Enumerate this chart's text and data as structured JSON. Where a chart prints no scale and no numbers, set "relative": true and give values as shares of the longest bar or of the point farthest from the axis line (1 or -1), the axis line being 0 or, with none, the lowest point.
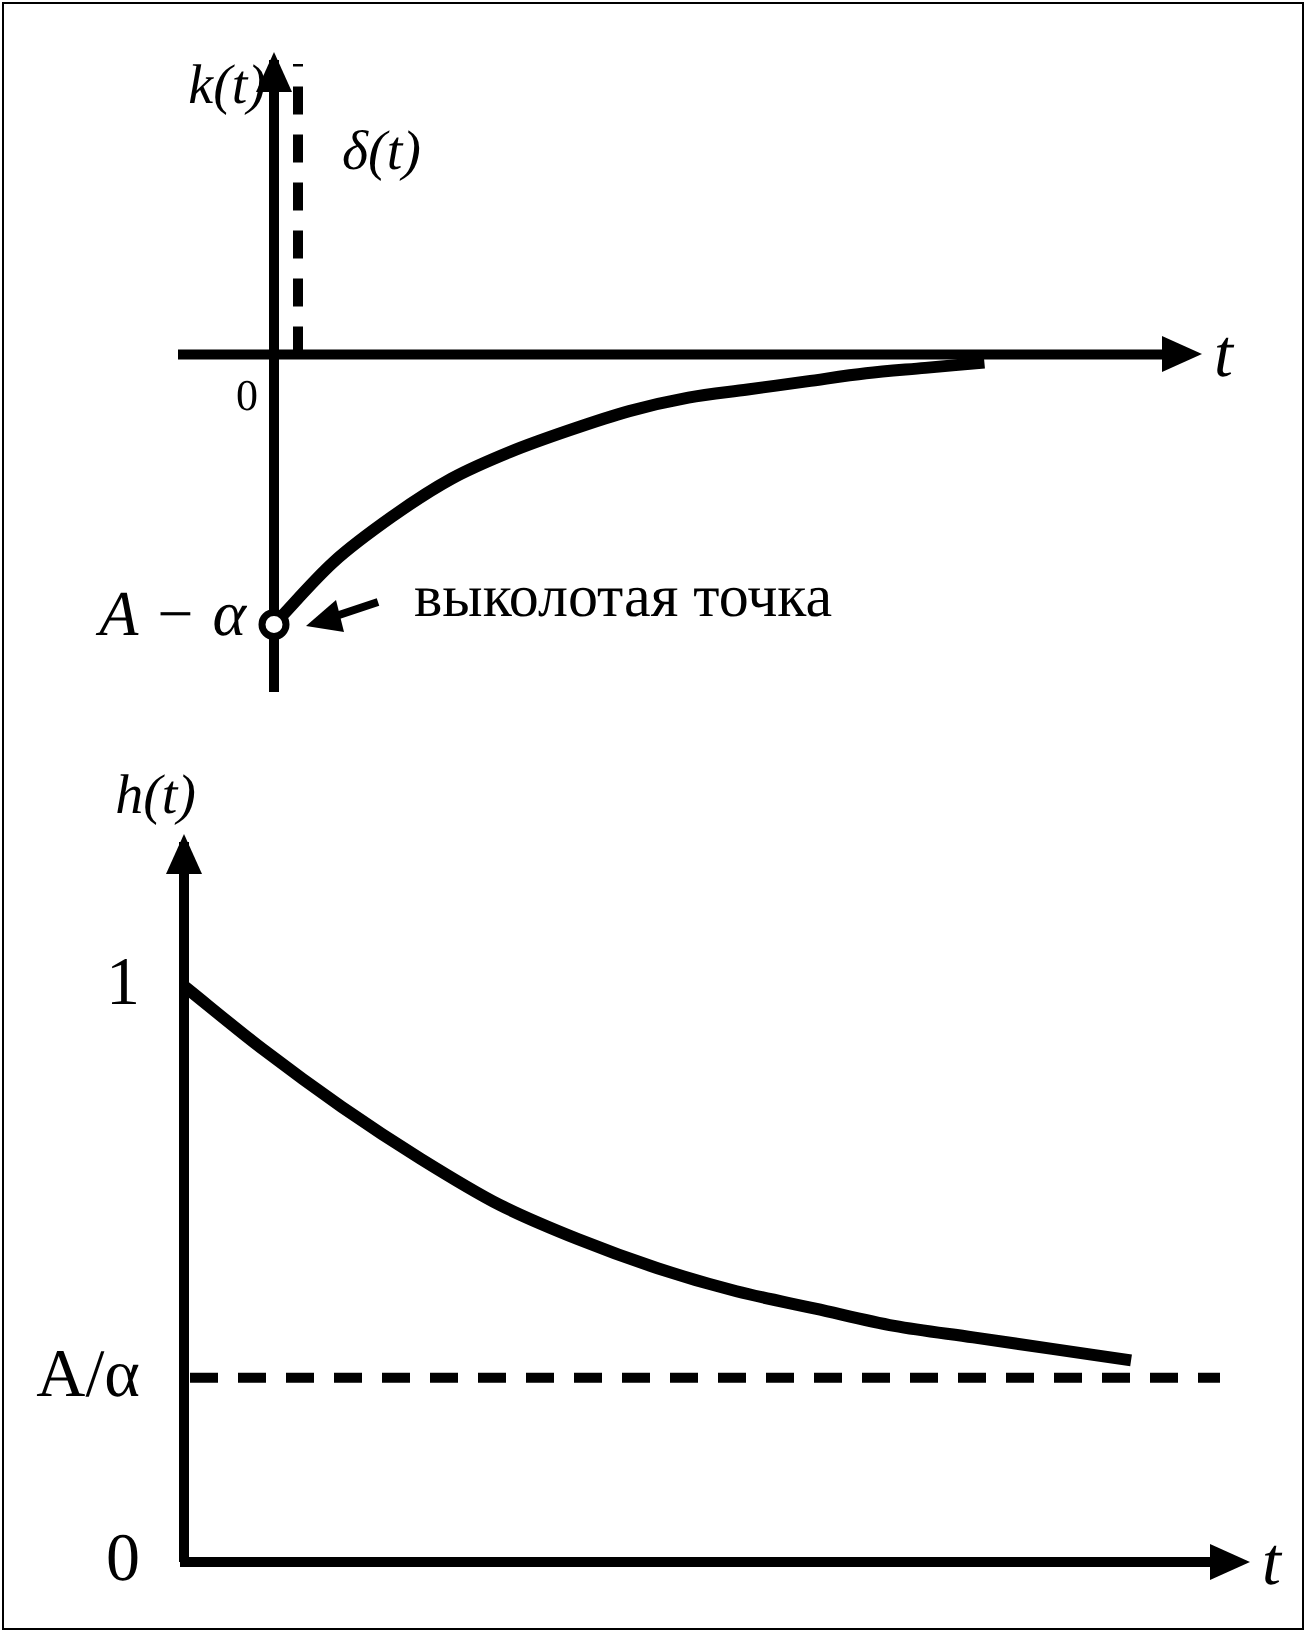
{
  "chart_data": [
    {
      "type": "line",
      "relative": true,
      "xlabel": "t",
      "ylabel": "k(t)",
      "tick_labels": false,
      "legend": false,
      "grid": false,
      "marker": "none",
      "categories": [
        null,
        null,
        null,
        null,
        null,
        null,
        null,
        null,
        null,
        null,
        null,
        null,
        null,
        null,
        null,
        null
      ],
      "series": [
        {
          "color": "#000000",
          "values": [
            -1,
            -0.77,
            -0.6,
            -0.46,
            -0.36,
            -0.28,
            -0.21,
            -0.16,
            -0.13,
            -0.1,
            -0.07,
            -0.05,
            -0.03,
            null,
            null,
            null
          ]
        }
      ],
      "annotations": [
        "0",
        "A − α",
        "выколотая точка",
        "δ(t)"
      ]
    },
    {
      "type": "line",
      "xlabel": "t",
      "ylabel": "h(t)",
      "tick_labels": "y",
      "legend": false,
      "grid": false,
      "marker": "none",
      "categories": [
        null,
        null,
        null,
        null,
        null,
        null,
        null,
        null,
        null,
        null,
        null,
        null,
        null,
        null
      ],
      "ylim": [
        0,
        1.25
      ],
      "yticks": [
        0,
        1,
        {
          "value": 0.32,
          "label": "A/α"
        }
      ],
      "series": [
        {
          "color": "#000000",
          "values": [
            1,
            0.89,
            0.79,
            0.7,
            0.62,
            0.56,
            0.51,
            0.47,
            0.44,
            0.41,
            0.39,
            0.37,
            0.35,
            null
          ]
        }
      ],
      "ref_lines": [
        {
          "axis": "y",
          "value": 0.32,
          "line_style": "dashed",
          "color": "#000000"
        }
      ]
    }
  ]
}
